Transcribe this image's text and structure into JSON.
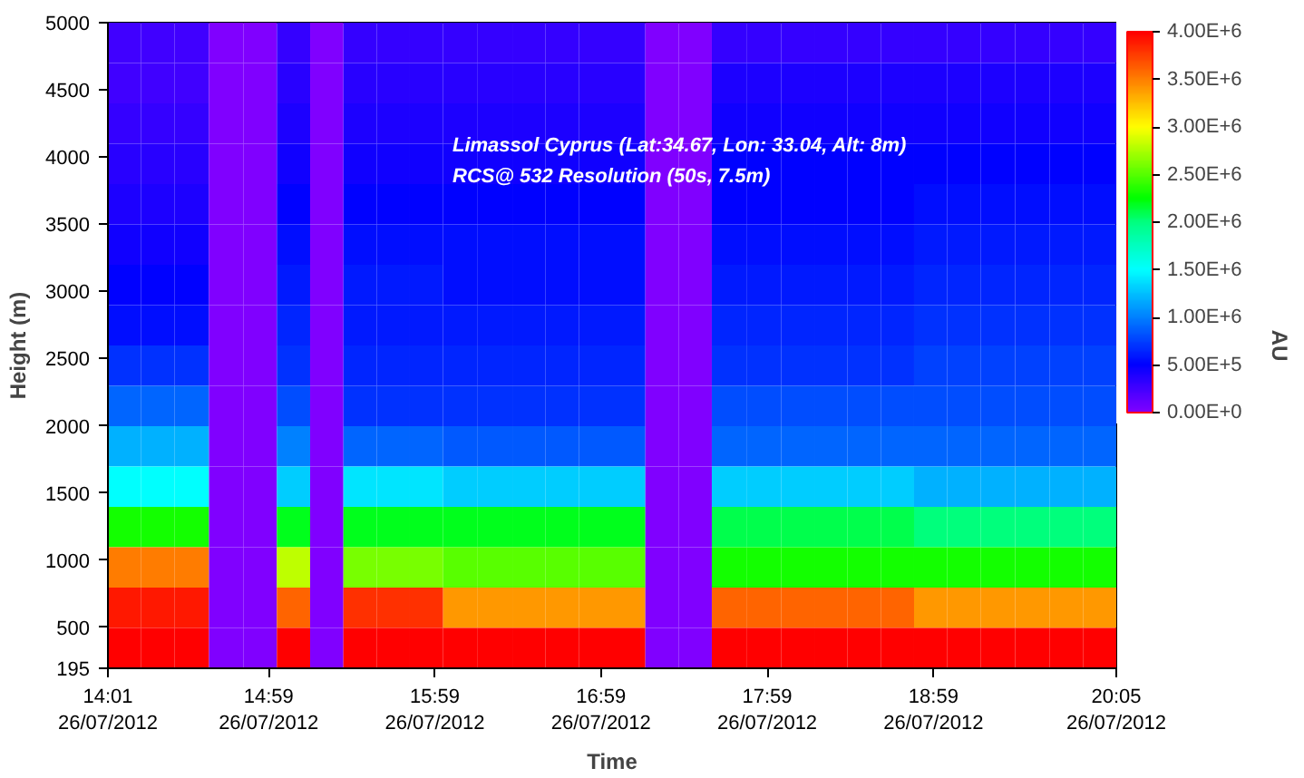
{
  "chart_data": {
    "type": "heatmap",
    "xlabel": "Time",
    "ylabel": "Height (m)",
    "clabel": "AU",
    "annotations": [
      "Limassol Cyprus (Lat:34.67, Lon: 33.04, Alt: 8m)",
      "RCS@ 532 Resolution (50s, 7.5m)"
    ],
    "x": [
      "2012-07-26T14:07",
      "2012-07-26T14:19",
      "2012-07-26T14:31",
      "2012-07-26T14:44",
      "2012-07-26T14:56",
      "2012-07-26T15:08",
      "2012-07-26T15:20",
      "2012-07-26T15:32",
      "2012-07-26T15:44",
      "2012-07-26T15:56",
      "2012-07-26T16:08",
      "2012-07-26T16:21",
      "2012-07-26T16:33",
      "2012-07-26T16:45",
      "2012-07-26T16:57",
      "2012-07-26T17:09",
      "2012-07-26T17:21",
      "2012-07-26T17:33",
      "2012-07-26T17:45",
      "2012-07-26T17:58",
      "2012-07-26T18:10",
      "2012-07-26T18:22",
      "2012-07-26T18:34",
      "2012-07-26T18:46",
      "2012-07-26T18:58",
      "2012-07-26T19:10",
      "2012-07-26T19:22",
      "2012-07-26T19:35",
      "2012-07-26T19:47",
      "2012-07-26T19:59"
    ],
    "xlim": [
      "2012-07-26T14:01",
      "2012-07-26T20:05"
    ],
    "xticks": [
      {
        "value": "2012-07-26T14:01",
        "label": "14:01\n26/07/2012"
      },
      {
        "value": "2012-07-26T14:59",
        "label": "14:59\n26/07/2012"
      },
      {
        "value": "2012-07-26T15:59",
        "label": "15:59\n26/07/2012"
      },
      {
        "value": "2012-07-26T16:59",
        "label": "16:59\n26/07/2012"
      },
      {
        "value": "2012-07-26T17:59",
        "label": "17:59\n26/07/2012"
      },
      {
        "value": "2012-07-26T18:59",
        "label": "18:59\n26/07/2012"
      },
      {
        "value": "2012-07-26T20:05",
        "label": "20:05\n26/07/2012"
      }
    ],
    "ylim": [
      195,
      5000
    ],
    "yticks": [
      195,
      500,
      1000,
      1500,
      2000,
      2500,
      3000,
      3500,
      4000,
      4500,
      5000
    ],
    "clim": [
      0,
      4000000
    ],
    "cticks": [
      {
        "value": 0,
        "label": "0.00E+0"
      },
      {
        "value": 500000,
        "label": "5.00E+5"
      },
      {
        "value": 1000000,
        "label": "1.00E+6"
      },
      {
        "value": 1500000,
        "label": "1.50E+6"
      },
      {
        "value": 2000000,
        "label": "2.00E+6"
      },
      {
        "value": 2500000,
        "label": "2.50E+6"
      },
      {
        "value": 3000000,
        "label": "3.00E+6"
      },
      {
        "value": 3500000,
        "label": "3.50E+6"
      },
      {
        "value": 4000000,
        "label": "4.00E+6"
      }
    ],
    "cells": [
      [
        250000,
        250000,
        250000,
        0,
        0,
        300000,
        0,
        300000,
        300000,
        300000,
        300000,
        300000,
        300000,
        300000,
        300000,
        300000,
        0,
        0,
        300000,
        300000,
        300000,
        300000,
        300000,
        300000,
        300000,
        300000,
        300000,
        300000,
        300000,
        300000
      ],
      [
        250000,
        250000,
        250000,
        0,
        0,
        350000,
        0,
        350000,
        350000,
        350000,
        350000,
        350000,
        350000,
        350000,
        350000,
        350000,
        0,
        0,
        400000,
        400000,
        400000,
        400000,
        400000,
        400000,
        400000,
        400000,
        400000,
        400000,
        400000,
        400000
      ],
      [
        300000,
        300000,
        300000,
        0,
        0,
        400000,
        0,
        400000,
        400000,
        400000,
        400000,
        400000,
        400000,
        400000,
        400000,
        400000,
        0,
        0,
        450000,
        450000,
        450000,
        450000,
        450000,
        450000,
        450000,
        450000,
        450000,
        450000,
        450000,
        450000
      ],
      [
        350000,
        350000,
        350000,
        0,
        0,
        450000,
        0,
        450000,
        450000,
        450000,
        450000,
        450000,
        450000,
        450000,
        450000,
        450000,
        0,
        0,
        500000,
        500000,
        500000,
        500000,
        500000,
        500000,
        500000,
        500000,
        500000,
        500000,
        500000,
        500000
      ],
      [
        400000,
        400000,
        400000,
        0,
        0,
        500000,
        0,
        500000,
        500000,
        500000,
        500000,
        500000,
        500000,
        500000,
        500000,
        500000,
        0,
        0,
        500000,
        500000,
        500000,
        500000,
        500000,
        500000,
        550000,
        550000,
        550000,
        550000,
        550000,
        550000
      ],
      [
        450000,
        450000,
        450000,
        0,
        0,
        550000,
        0,
        550000,
        550000,
        550000,
        550000,
        550000,
        550000,
        550000,
        550000,
        550000,
        0,
        0,
        550000,
        550000,
        550000,
        550000,
        550000,
        550000,
        600000,
        600000,
        600000,
        600000,
        600000,
        600000
      ],
      [
        500000,
        500000,
        500000,
        0,
        0,
        600000,
        0,
        600000,
        600000,
        600000,
        550000,
        550000,
        550000,
        550000,
        550000,
        550000,
        0,
        0,
        600000,
        600000,
        600000,
        600000,
        600000,
        600000,
        650000,
        650000,
        650000,
        650000,
        650000,
        650000
      ],
      [
        550000,
        550000,
        550000,
        0,
        0,
        650000,
        0,
        600000,
        600000,
        600000,
        600000,
        600000,
        600000,
        600000,
        600000,
        600000,
        0,
        0,
        650000,
        650000,
        650000,
        650000,
        650000,
        650000,
        700000,
        700000,
        700000,
        700000,
        700000,
        700000
      ],
      [
        700000,
        700000,
        700000,
        0,
        0,
        700000,
        0,
        650000,
        650000,
        650000,
        650000,
        650000,
        650000,
        650000,
        650000,
        650000,
        0,
        0,
        700000,
        700000,
        700000,
        700000,
        700000,
        700000,
        750000,
        750000,
        750000,
        750000,
        750000,
        750000
      ],
      [
        900000,
        900000,
        900000,
        0,
        0,
        800000,
        0,
        700000,
        700000,
        700000,
        700000,
        700000,
        700000,
        700000,
        700000,
        700000,
        0,
        0,
        800000,
        800000,
        800000,
        800000,
        800000,
        800000,
        800000,
        800000,
        800000,
        800000,
        800000,
        800000
      ],
      [
        1200000,
        1200000,
        1200000,
        0,
        0,
        1000000,
        0,
        900000,
        900000,
        900000,
        850000,
        850000,
        850000,
        850000,
        850000,
        850000,
        0,
        0,
        900000,
        900000,
        900000,
        900000,
        900000,
        900000,
        900000,
        900000,
        900000,
        900000,
        900000,
        900000
      ],
      [
        1500000,
        1500000,
        1500000,
        0,
        0,
        1300000,
        0,
        1400000,
        1400000,
        1400000,
        1300000,
        1300000,
        1300000,
        1300000,
        1300000,
        1300000,
        0,
        0,
        1300000,
        1300000,
        1300000,
        1300000,
        1300000,
        1300000,
        1200000,
        1200000,
        1200000,
        1200000,
        1200000,
        1200000
      ],
      [
        2300000,
        2300000,
        2300000,
        0,
        0,
        2200000,
        0,
        2200000,
        2200000,
        2200000,
        2200000,
        2200000,
        2200000,
        2200000,
        2200000,
        2200000,
        0,
        0,
        2100000,
        2100000,
        2100000,
        2100000,
        2100000,
        2100000,
        2000000,
        2000000,
        2000000,
        2000000,
        2000000,
        2000000
      ],
      [
        3500000,
        3500000,
        3500000,
        0,
        0,
        2800000,
        0,
        2600000,
        2600000,
        2600000,
        2500000,
        2500000,
        2500000,
        2500000,
        2500000,
        2500000,
        0,
        0,
        2300000,
        2300000,
        2300000,
        2300000,
        2300000,
        2300000,
        2300000,
        2300000,
        2300000,
        2300000,
        2300000,
        2300000
      ],
      [
        3900000,
        3900000,
        3900000,
        0,
        0,
        3600000,
        0,
        3800000,
        3800000,
        3800000,
        3400000,
        3400000,
        3400000,
        3400000,
        3400000,
        3400000,
        0,
        0,
        3600000,
        3600000,
        3600000,
        3600000,
        3600000,
        3600000,
        3400000,
        3400000,
        3400000,
        3400000,
        3400000,
        3400000
      ],
      [
        4000000,
        4000000,
        4000000,
        0,
        0,
        4000000,
        0,
        4000000,
        4000000,
        4000000,
        4000000,
        4000000,
        4000000,
        4000000,
        4000000,
        4000000,
        0,
        0,
        4000000,
        4000000,
        4000000,
        4000000,
        4000000,
        4000000,
        4000000,
        4000000,
        4000000,
        4000000,
        4000000,
        4000000
      ]
    ]
  }
}
